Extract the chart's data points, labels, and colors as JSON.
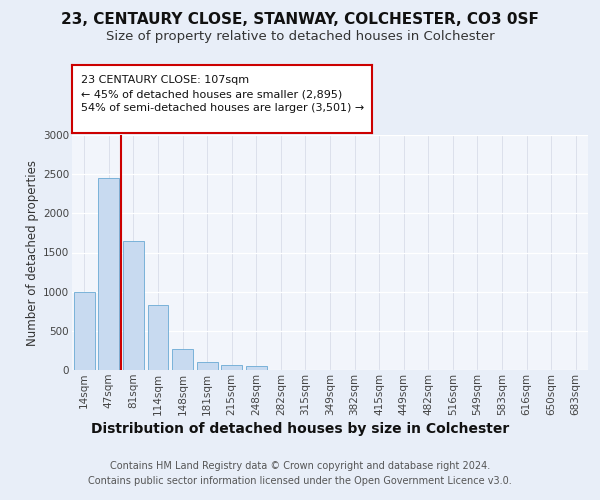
{
  "title": "23, CENTAURY CLOSE, STANWAY, COLCHESTER, CO3 0SF",
  "subtitle": "Size of property relative to detached houses in Colchester",
  "xlabel": "Distribution of detached houses by size in Colchester",
  "ylabel": "Number of detached properties",
  "footer_line1": "Contains HM Land Registry data © Crown copyright and database right 2024.",
  "footer_line2": "Contains public sector information licensed under the Open Government Licence v3.0.",
  "categories": [
    "14sqm",
    "47sqm",
    "81sqm",
    "114sqm",
    "148sqm",
    "181sqm",
    "215sqm",
    "248sqm",
    "282sqm",
    "315sqm",
    "349sqm",
    "382sqm",
    "415sqm",
    "449sqm",
    "482sqm",
    "516sqm",
    "549sqm",
    "583sqm",
    "616sqm",
    "650sqm",
    "683sqm"
  ],
  "values": [
    1000,
    2450,
    1650,
    830,
    270,
    100,
    60,
    55,
    0,
    0,
    0,
    0,
    0,
    0,
    0,
    0,
    0,
    0,
    0,
    0,
    0
  ],
  "bar_color": "#c8daf0",
  "bar_edge_color": "#6aaad4",
  "vline_color": "#cc0000",
  "vline_pos": 1.5,
  "annotation_line1": "23 CENTAURY CLOSE: 107sqm",
  "annotation_line2": "← 45% of detached houses are smaller (2,895)",
  "annotation_line3": "54% of semi-detached houses are larger (3,501) →",
  "annotation_box_color": "#ffffff",
  "annotation_box_edge": "#cc0000",
  "ylim": [
    0,
    3000
  ],
  "yticks": [
    0,
    500,
    1000,
    1500,
    2000,
    2500,
    3000
  ],
  "bg_color": "#e8eef8",
  "plot_bg_color": "#f2f5fb",
  "grid_color": "#d8dde8",
  "title_fontsize": 11,
  "subtitle_fontsize": 9.5,
  "xlabel_fontsize": 10,
  "ylabel_fontsize": 8.5,
  "footer_fontsize": 7,
  "tick_fontsize": 7.5,
  "annotation_fontsize": 8
}
